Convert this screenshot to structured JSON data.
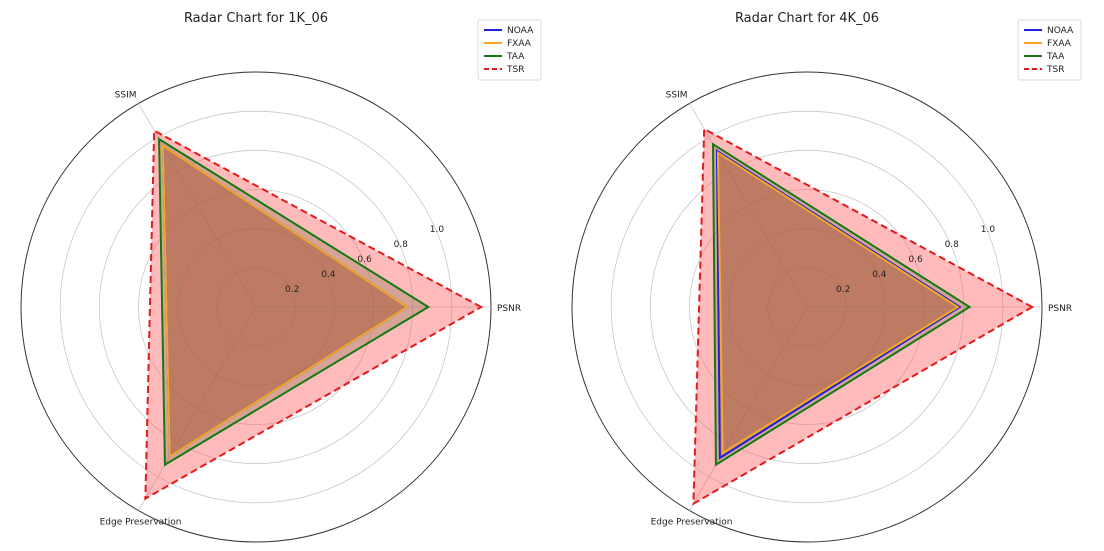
{
  "chart_data": [
    {
      "type": "radar",
      "title": "Radar Chart for 1K_06",
      "axes": [
        "PSNR",
        "SSIM",
        "Edge Preservation"
      ],
      "rlim": [
        0,
        1.2
      ],
      "rticks": [
        0.2,
        0.4,
        0.6,
        0.8,
        1.0
      ],
      "rtick_labels": [
        "0.2",
        "0.4",
        "0.6",
        "0.8",
        "1.0"
      ],
      "grid": true,
      "legend_position": "top-right",
      "series": [
        {
          "name": "NOAA",
          "values": [
            0.77,
            0.95,
            0.88
          ],
          "color": "#1f1fdc",
          "style": "solid",
          "fill": "#b5472f"
        },
        {
          "name": "FXAA",
          "values": [
            0.77,
            0.95,
            0.88
          ],
          "color": "#f5a623",
          "style": "solid",
          "fill": "#c0502e"
        },
        {
          "name": "TAA",
          "values": [
            0.88,
            0.99,
            0.93
          ],
          "color": "#137a13",
          "style": "solid",
          "fill": "#8a7a55"
        },
        {
          "name": "TSR",
          "values": [
            1.15,
            1.04,
            1.13
          ],
          "color": "#e31a1c",
          "style": "dashed",
          "fill": "#ff5c5c"
        }
      ]
    },
    {
      "type": "radar",
      "title": "Radar Chart for 4K_06",
      "axes": [
        "PSNR",
        "SSIM",
        "Edge Preservation"
      ],
      "rlim": [
        0,
        1.2
      ],
      "rticks": [
        0.2,
        0.4,
        0.6,
        0.8,
        1.0
      ],
      "rtick_labels": [
        "0.2",
        "0.4",
        "0.6",
        "0.8",
        "1.0"
      ],
      "grid": true,
      "legend_position": "top-right",
      "series": [
        {
          "name": "NOAA",
          "values": [
            0.78,
            0.92,
            0.89
          ],
          "color": "#1f1fdc",
          "style": "solid",
          "fill": "#b5472f"
        },
        {
          "name": "FXAA",
          "values": [
            0.77,
            0.91,
            0.86
          ],
          "color": "#f5a623",
          "style": "solid",
          "fill": "#c0502e"
        },
        {
          "name": "TAA",
          "values": [
            0.83,
            0.96,
            0.93
          ],
          "color": "#137a13",
          "style": "solid",
          "fill": "#8a7a55"
        },
        {
          "name": "TSR",
          "values": [
            1.15,
            1.05,
            1.16
          ],
          "color": "#e31a1c",
          "style": "dashed",
          "fill": "#ff5c5c"
        }
      ]
    }
  ]
}
